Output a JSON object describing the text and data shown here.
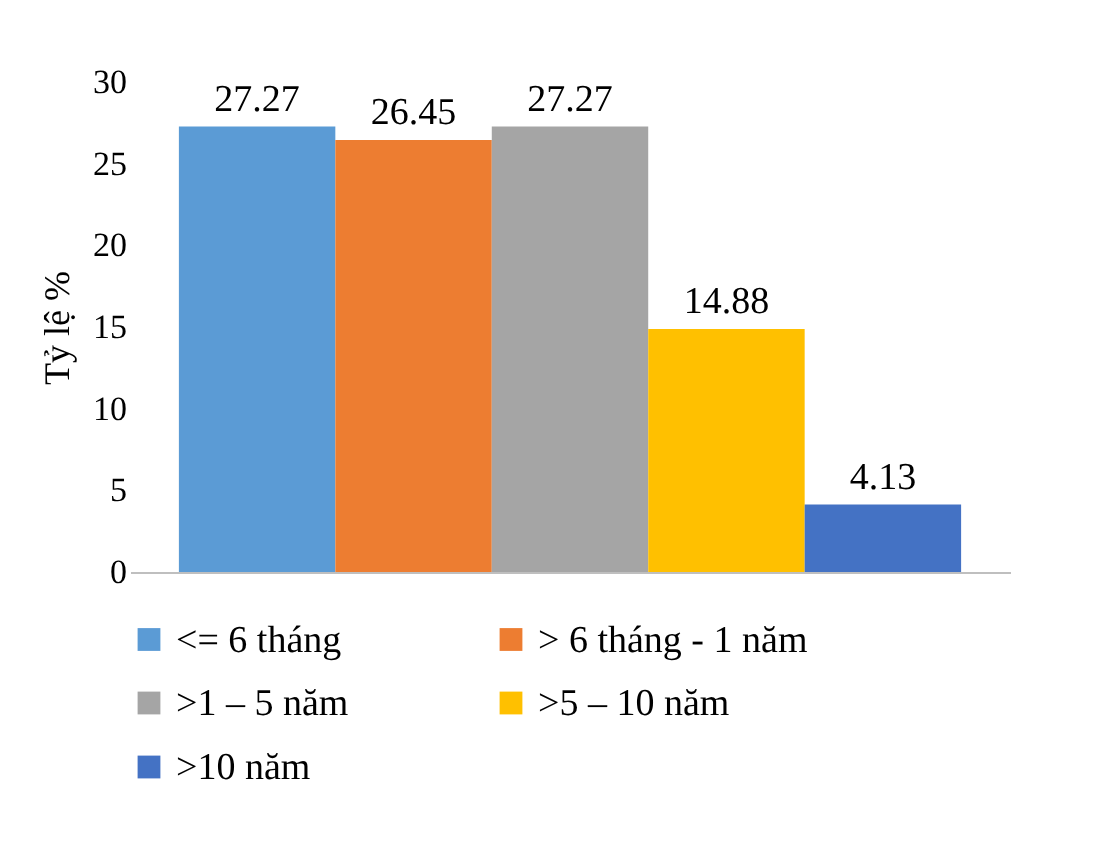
{
  "chart_data": {
    "type": "bar",
    "ylabel": "Tỷ lệ %",
    "categories": [
      null
    ],
    "series": [
      {
        "name": "<=  6 tháng",
        "color": "#5b9bd5",
        "values": [
          27.27
        ]
      },
      {
        "name": "> 6 tháng - 1 năm",
        "color": "#ed7d31",
        "values": [
          26.45
        ]
      },
      {
        "name": ">1 – 5 năm",
        "color": "#a5a5a5",
        "values": [
          27.27
        ]
      },
      {
        "name": ">5 – 10 năm",
        "color": "#ffc000",
        "values": [
          14.88
        ]
      },
      {
        "name": ">10 năm",
        "color": "#4472c4",
        "values": [
          4.13
        ]
      }
    ],
    "ylim": [
      0,
      30
    ],
    "yticks": [
      0,
      5,
      10,
      15,
      20,
      25,
      30
    ],
    "grid": false,
    "legend": "bottom",
    "data_labels": true
  }
}
